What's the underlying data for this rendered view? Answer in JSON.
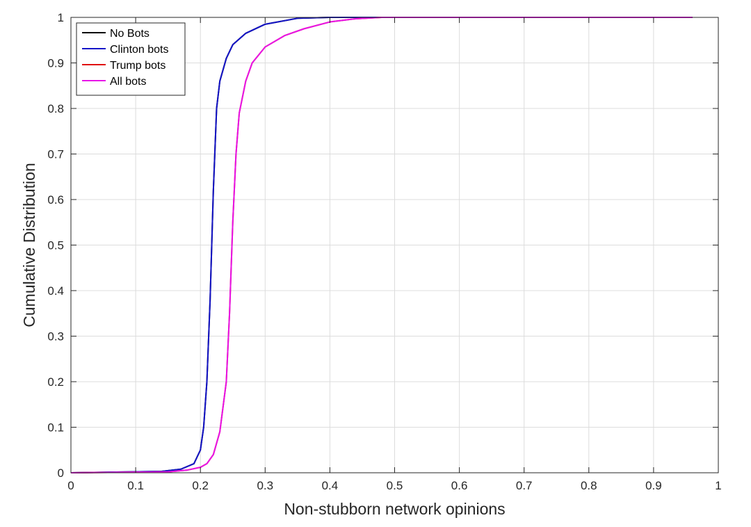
{
  "chart_data": {
    "type": "line",
    "title": "",
    "xlabel": "Non-stubborn network opinions",
    "ylabel": "Cumulative Distribution",
    "xlim": [
      0,
      1
    ],
    "ylim": [
      0,
      1
    ],
    "x_ticks": [
      0,
      0.1,
      0.2,
      0.3,
      0.4,
      0.5,
      0.6,
      0.7,
      0.8,
      0.9,
      1
    ],
    "y_ticks": [
      0,
      0.1,
      0.2,
      0.3,
      0.4,
      0.5,
      0.6,
      0.7,
      0.8,
      0.9,
      1
    ],
    "x_tick_labels": [
      "0",
      "0.1",
      "0.2",
      "0.3",
      "0.4",
      "0.5",
      "0.6",
      "0.7",
      "0.8",
      "0.9",
      "1"
    ],
    "y_tick_labels": [
      "0",
      "0.1",
      "0.2",
      "0.3",
      "0.4",
      "0.5",
      "0.6",
      "0.7",
      "0.8",
      "0.9",
      "1"
    ],
    "grid": true,
    "legend_position": "top-left",
    "series": [
      {
        "name": "No Bots",
        "color": "#000000",
        "x": [
          0.0,
          0.14,
          0.17,
          0.19,
          0.2,
          0.205,
          0.21,
          0.215,
          0.22,
          0.225,
          0.23,
          0.24,
          0.25,
          0.27,
          0.3,
          0.35,
          0.4,
          0.47,
          0.96
        ],
        "y": [
          0.0,
          0.003,
          0.008,
          0.02,
          0.05,
          0.1,
          0.2,
          0.38,
          0.62,
          0.8,
          0.86,
          0.91,
          0.94,
          0.965,
          0.985,
          0.998,
          1.0,
          1.0,
          1.0
        ]
      },
      {
        "name": "Clinton bots",
        "color": "#1515c8",
        "x": [
          0.0,
          0.14,
          0.17,
          0.19,
          0.2,
          0.205,
          0.21,
          0.215,
          0.22,
          0.225,
          0.23,
          0.24,
          0.25,
          0.27,
          0.3,
          0.35,
          0.4,
          0.47,
          0.96
        ],
        "y": [
          0.0,
          0.003,
          0.008,
          0.02,
          0.05,
          0.1,
          0.2,
          0.38,
          0.62,
          0.8,
          0.86,
          0.91,
          0.94,
          0.965,
          0.985,
          0.998,
          1.0,
          1.0,
          1.0
        ]
      },
      {
        "name": "Trump bots",
        "color": "#e01010",
        "x": [
          0.0,
          0.15,
          0.18,
          0.2,
          0.21,
          0.22,
          0.23,
          0.24,
          0.245,
          0.25,
          0.255,
          0.26,
          0.27,
          0.28,
          0.3,
          0.33,
          0.36,
          0.4,
          0.44,
          0.48,
          0.96
        ],
        "y": [
          0.0,
          0.002,
          0.006,
          0.012,
          0.02,
          0.04,
          0.09,
          0.2,
          0.35,
          0.55,
          0.7,
          0.79,
          0.86,
          0.9,
          0.935,
          0.96,
          0.975,
          0.99,
          0.997,
          1.0,
          1.0
        ]
      },
      {
        "name": "All bots",
        "color": "#e815e8",
        "x": [
          0.0,
          0.15,
          0.18,
          0.2,
          0.21,
          0.22,
          0.23,
          0.24,
          0.245,
          0.25,
          0.255,
          0.26,
          0.27,
          0.28,
          0.3,
          0.33,
          0.36,
          0.4,
          0.44,
          0.48,
          0.96
        ],
        "y": [
          0.0,
          0.002,
          0.006,
          0.012,
          0.02,
          0.04,
          0.09,
          0.2,
          0.35,
          0.55,
          0.7,
          0.79,
          0.86,
          0.9,
          0.935,
          0.96,
          0.975,
          0.99,
          0.997,
          1.0,
          1.0
        ]
      }
    ]
  }
}
